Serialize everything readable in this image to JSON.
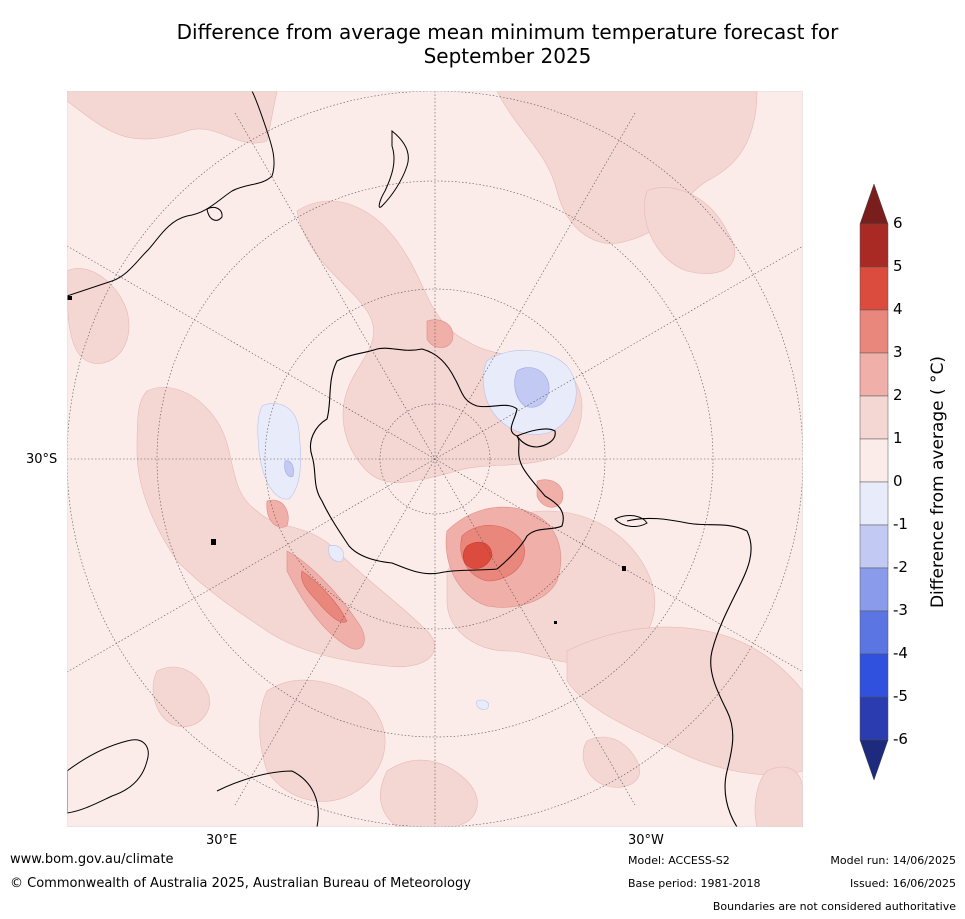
{
  "title_line1": "Difference from average mean minimum temperature forecast for",
  "title_line2": "September 2025",
  "map": {
    "projection": "south polar stereographic",
    "lat_label": "30°S",
    "lon_labels": [
      "30°E",
      "30°W"
    ],
    "ocean_base_color": "#fbecea",
    "land_outline_color": "#000000"
  },
  "colorbar": {
    "label": "Difference from average ( °C)",
    "ticks": [
      "6",
      "5",
      "4",
      "3",
      "2",
      "1",
      "0",
      "-1",
      "-2",
      "-3",
      "-4",
      "-5",
      "-6"
    ],
    "bins": [
      {
        "range": ">6",
        "color": "#7a1d1d"
      },
      {
        "range": "5 to 6",
        "color": "#a92a25"
      },
      {
        "range": "4 to 5",
        "color": "#db4c3f"
      },
      {
        "range": "3 to 4",
        "color": "#e9877d"
      },
      {
        "range": "2 to 3",
        "color": "#f0afa8"
      },
      {
        "range": "1 to 2",
        "color": "#f4d6d3"
      },
      {
        "range": "0 to 1",
        "color": "#fbecea"
      },
      {
        "range": "-1 to 0",
        "color": "#e8ebfa"
      },
      {
        "range": "-2 to -1",
        "color": "#c2c9f2"
      },
      {
        "range": "-3 to -2",
        "color": "#8a9bec"
      },
      {
        "range": "-4 to -3",
        "color": "#5b75e3"
      },
      {
        "range": "-5 to -4",
        "color": "#2f51de"
      },
      {
        "range": "-6 to -5",
        "color": "#2a3cb0"
      },
      {
        "range": "<-6",
        "color": "#1e2a7d"
      }
    ]
  },
  "footer": {
    "website": "www.bom.gov.au/climate",
    "copyright": "© Commonwealth of Australia 2025, Australian Bureau of Meteorology",
    "model": "Model: ACCESS-S2",
    "base_period": "Base period: 1981-2018",
    "model_run": "Model run: 14/06/2025",
    "issued": "Issued: 16/06/2025",
    "disclaimer": "Boundaries are not considered authoritative"
  }
}
